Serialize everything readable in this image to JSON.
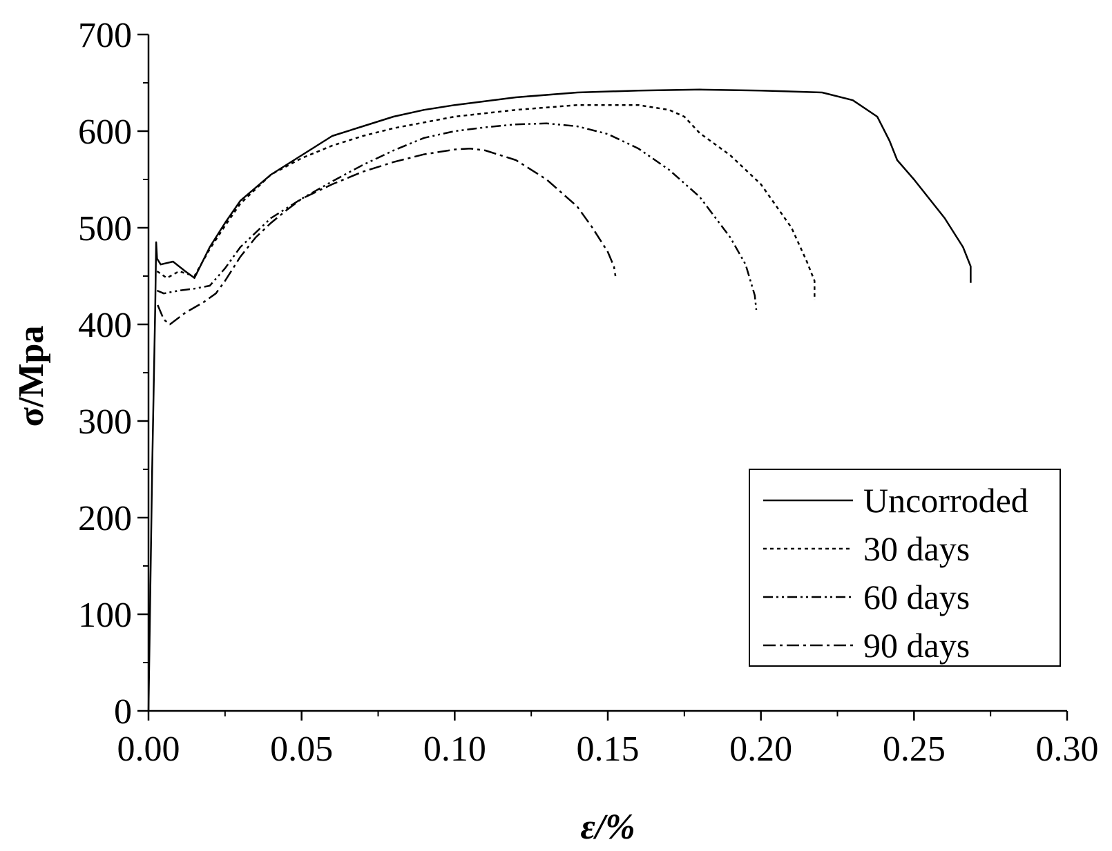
{
  "chart_data": {
    "type": "line",
    "title": "",
    "xlabel": "ε/%",
    "ylabel": "σ/Mpa",
    "xlim": [
      0.0,
      0.3
    ],
    "ylim": [
      0,
      700
    ],
    "x_ticks": [
      {
        "value": 0.0,
        "label": "0.00"
      },
      {
        "value": 0.05,
        "label": "0.05"
      },
      {
        "value": 0.1,
        "label": "0.10"
      },
      {
        "value": 0.15,
        "label": "0.15"
      },
      {
        "value": 0.2,
        "label": "0.20"
      },
      {
        "value": 0.25,
        "label": "0.25"
      },
      {
        "value": 0.3,
        "label": "0.30"
      }
    ],
    "y_ticks": [
      {
        "value": 0,
        "label": "0"
      },
      {
        "value": 100,
        "label": "100"
      },
      {
        "value": 200,
        "label": "200"
      },
      {
        "value": 300,
        "label": "300"
      },
      {
        "value": 400,
        "label": "400"
      },
      {
        "value": 500,
        "label": "500"
      },
      {
        "value": 600,
        "label": "600"
      },
      {
        "value": 700,
        "label": "700"
      }
    ],
    "grid": false,
    "legend_position": "bottom-right",
    "series": [
      {
        "name": "Uncorroded",
        "style": "solid",
        "x": [
          0.0,
          0.0012,
          0.0022,
          0.0025,
          0.0028,
          0.004,
          0.008,
          0.012,
          0.015,
          0.02,
          0.025,
          0.03,
          0.04,
          0.05,
          0.06,
          0.07,
          0.08,
          0.09,
          0.1,
          0.12,
          0.14,
          0.16,
          0.18,
          0.2,
          0.22,
          0.23,
          0.238,
          0.242,
          0.2445,
          0.25,
          0.26,
          0.266,
          0.2685,
          0.2685
        ],
        "y": [
          0,
          250,
          420,
          485,
          468,
          462,
          465,
          455,
          448,
          480,
          505,
          528,
          555,
          575,
          595,
          605,
          615,
          622,
          627,
          635,
          640,
          642,
          643,
          642,
          640,
          632,
          615,
          590,
          570,
          550,
          510,
          480,
          460,
          443
        ]
      },
      {
        "name": "30 days",
        "style": "dotted",
        "x": [
          0.0028,
          0.006,
          0.01,
          0.015,
          0.02,
          0.025,
          0.03,
          0.04,
          0.05,
          0.06,
          0.07,
          0.08,
          0.1,
          0.12,
          0.14,
          0.16,
          0.17,
          0.175,
          0.18,
          0.19,
          0.2,
          0.21,
          0.215,
          0.2175,
          0.2175
        ],
        "y": [
          455,
          448,
          455,
          450,
          478,
          502,
          525,
          555,
          572,
          585,
          595,
          603,
          615,
          622,
          627,
          627,
          622,
          615,
          598,
          575,
          545,
          500,
          465,
          445,
          425
        ]
      },
      {
        "name": "60 days",
        "style": "dash-dot-dot",
        "x": [
          0.0028,
          0.005,
          0.01,
          0.015,
          0.02,
          0.025,
          0.03,
          0.04,
          0.05,
          0.06,
          0.07,
          0.08,
          0.09,
          0.1,
          0.11,
          0.12,
          0.13,
          0.14,
          0.15,
          0.16,
          0.17,
          0.18,
          0.19,
          0.195,
          0.198,
          0.1985
        ],
        "y": [
          435,
          432,
          435,
          437,
          440,
          458,
          480,
          510,
          530,
          548,
          565,
          580,
          593,
          600,
          604,
          607,
          608,
          605,
          597,
          582,
          560,
          532,
          490,
          462,
          430,
          415
        ]
      },
      {
        "name": "90 days",
        "style": "dash-dot",
        "x": [
          0.003,
          0.005,
          0.007,
          0.012,
          0.018,
          0.022,
          0.025,
          0.03,
          0.035,
          0.04,
          0.045,
          0.05,
          0.06,
          0.07,
          0.08,
          0.09,
          0.1,
          0.105,
          0.11,
          0.12,
          0.13,
          0.14,
          0.145,
          0.15,
          0.152,
          0.1525
        ],
        "y": [
          420,
          405,
          400,
          412,
          423,
          432,
          445,
          470,
          490,
          505,
          518,
          530,
          545,
          558,
          568,
          576,
          581,
          582,
          580,
          570,
          550,
          522,
          500,
          475,
          460,
          450
        ]
      }
    ]
  }
}
